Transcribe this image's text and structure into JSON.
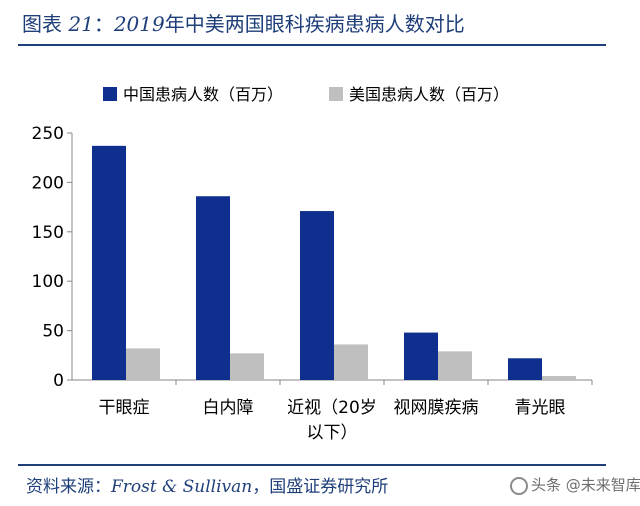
{
  "figure": {
    "title_prefix": "图表",
    "title_number": "21",
    "title_sep": "：",
    "title_year": "2019",
    "title_text": "年中美两国眼科疾病患病人数对比"
  },
  "source": {
    "label": "资料来源：",
    "latin": "Frost & Sullivan",
    "rest": "，国盛证券研究所"
  },
  "watermark": {
    "text": "头条 @未来智库"
  },
  "colors": {
    "china": "#0f2f8f",
    "usa": "#bfbfbf",
    "accent": "#1f3f7a"
  },
  "chart_data": {
    "type": "bar",
    "title": "",
    "xlabel": "",
    "ylabel": "",
    "categories": [
      "干眼症",
      "白内障",
      "近视（20岁以下）",
      "视网膜疾病",
      "青光眼"
    ],
    "category_lines": [
      [
        "干眼症"
      ],
      [
        "白内障"
      ],
      [
        "近视（20岁",
        "以下）"
      ],
      [
        "视网膜疾病"
      ],
      [
        "青光眼"
      ]
    ],
    "series": [
      {
        "name": "中国患病人数（百万）",
        "values": [
          237,
          186,
          171,
          48,
          22
        ]
      },
      {
        "name": "美国患病人数（百万）",
        "values": [
          32,
          27,
          36,
          29,
          4
        ]
      }
    ],
    "ylim": [
      0,
      250
    ],
    "yticks": [
      "0",
      "50",
      "100",
      "150",
      "200",
      "250"
    ],
    "grid": false,
    "legend": "top"
  }
}
